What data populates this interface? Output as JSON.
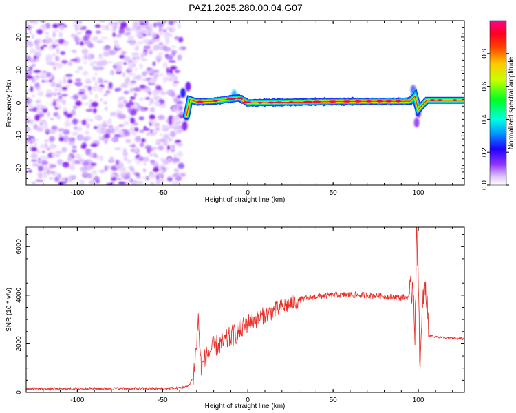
{
  "title": "PAZ1.2025.280.00.04.G07",
  "chart_data": [
    {
      "type": "heatmap",
      "xlabel": "Height of straight line (km)",
      "ylabel": "Frequency (Hz)",
      "xlim": [
        -130,
        127
      ],
      "ylim": [
        -25,
        25
      ],
      "xticks": [
        -100,
        -50,
        0,
        50,
        100
      ],
      "yticks": [
        -20,
        -10,
        0,
        10,
        20
      ],
      "noise_region_x": [
        -130,
        -38
      ],
      "signal_track": [
        {
          "x": -38,
          "f": 3.5
        },
        {
          "x": -36,
          "f": -4
        },
        {
          "x": -34,
          "f": 1
        },
        {
          "x": -30,
          "f": 0.3
        },
        {
          "x": -20,
          "f": 0.5
        },
        {
          "x": -10,
          "f": 1.2
        },
        {
          "x": -5,
          "f": 1.5
        },
        {
          "x": 0,
          "f": 0
        },
        {
          "x": 50,
          "f": 0.4
        },
        {
          "x": 95,
          "f": 0.5
        },
        {
          "x": 98,
          "f": 2
        },
        {
          "x": 100,
          "f": -2
        },
        {
          "x": 105,
          "f": 0.8
        },
        {
          "x": 127,
          "f": 0.8
        }
      ],
      "colorbar": {
        "label": "Normalized spectral amplitude",
        "range": [
          0,
          1
        ],
        "ticks": [
          "0.0",
          "0.2",
          "0.4",
          "0.6",
          "0.8"
        ],
        "colors": [
          "#ffffff",
          "#c896ff",
          "#6400ff",
          "#0000ff",
          "#00ffff",
          "#00ff00",
          "#ffff00",
          "#ff8000",
          "#ff0000",
          "#ff0090"
        ]
      }
    },
    {
      "type": "line",
      "xlabel": "Height of straight line (km)",
      "ylabel": "SNR (10 * v/v)",
      "xlim": [
        -130,
        127
      ],
      "ylim": [
        0,
        6800
      ],
      "xticks": [
        -100,
        -50,
        0,
        50,
        100
      ],
      "yticks": [
        0,
        2000,
        4000,
        6000
      ],
      "color": "#e8302a",
      "series": [
        {
          "name": "SNR",
          "x": [
            -130,
            -110,
            -90,
            -70,
            -50,
            -40,
            -35,
            -32,
            -30,
            -29,
            -28,
            -27,
            -25,
            -20,
            -15,
            -10,
            -5,
            0,
            5,
            10,
            20,
            30,
            40,
            50,
            60,
            70,
            80,
            90,
            95,
            97,
            98,
            99,
            100,
            101,
            103,
            105,
            106,
            110,
            115,
            120,
            127
          ],
          "y": [
            150,
            140,
            160,
            150,
            150,
            180,
            250,
            600,
            2000,
            3200,
            1500,
            1000,
            1400,
            1900,
            2000,
            2300,
            2500,
            2900,
            3000,
            3200,
            3500,
            3800,
            3950,
            4000,
            4020,
            4000,
            3950,
            3900,
            3950,
            4500,
            2500,
            6500,
            5000,
            900,
            4200,
            3900,
            2350,
            2300,
            2250,
            2230,
            2200
          ]
        }
      ]
    }
  ]
}
